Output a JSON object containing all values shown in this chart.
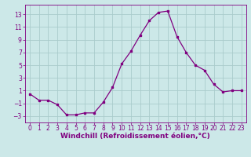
{
  "x": [
    0,
    1,
    2,
    3,
    4,
    5,
    6,
    7,
    8,
    9,
    10,
    11,
    12,
    13,
    14,
    15,
    16,
    17,
    18,
    19,
    20,
    21,
    22,
    23
  ],
  "y": [
    0.5,
    -0.5,
    -0.5,
    -1.2,
    -2.8,
    -2.8,
    -2.5,
    -2.5,
    -0.8,
    1.5,
    5.2,
    7.2,
    9.7,
    12.0,
    13.3,
    13.5,
    9.5,
    7.0,
    5.0,
    4.2,
    2.0,
    0.8,
    1.0,
    1.0
  ],
  "line_color": "#800080",
  "marker": "s",
  "marker_size": 2,
  "bg_color": "#cce8e8",
  "grid_color": "#aacccc",
  "xlabel": "Windchill (Refroidissement éolien,°C)",
  "xlim": [
    -0.5,
    23.5
  ],
  "ylim": [
    -4,
    14.5
  ],
  "yticks": [
    -3,
    -1,
    1,
    3,
    5,
    7,
    9,
    11,
    13
  ],
  "xticks": [
    0,
    1,
    2,
    3,
    4,
    5,
    6,
    7,
    8,
    9,
    10,
    11,
    12,
    13,
    14,
    15,
    16,
    17,
    18,
    19,
    20,
    21,
    22,
    23
  ],
  "tick_color": "#800080",
  "label_color": "#800080",
  "xlabel_fontsize": 6.5,
  "tick_fontsize": 5.5
}
